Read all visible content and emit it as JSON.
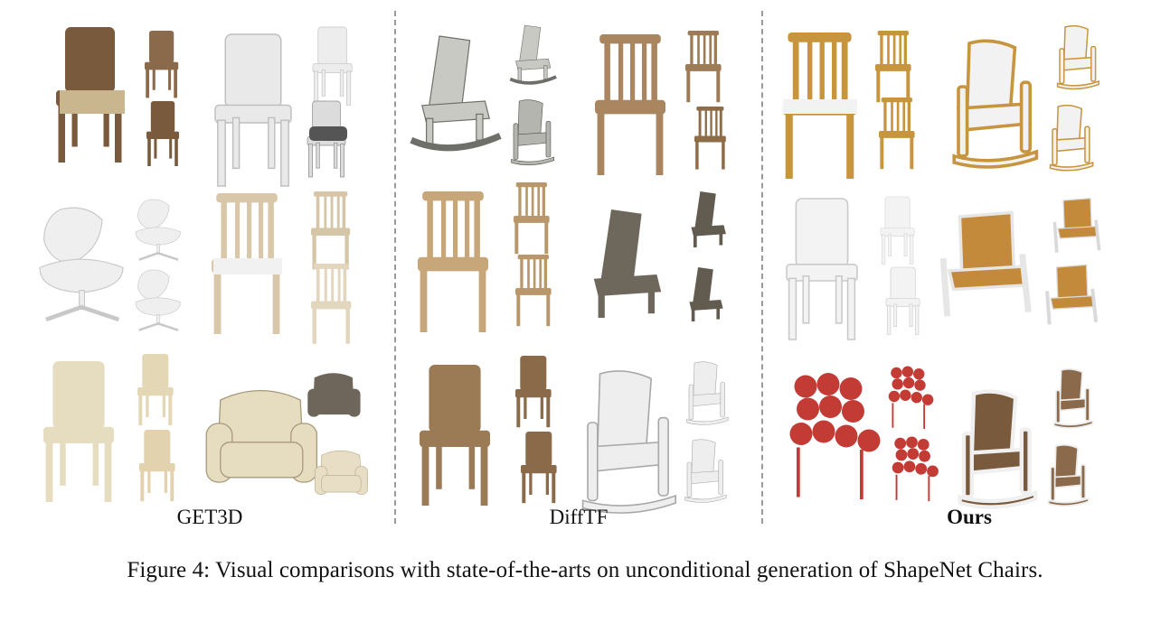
{
  "figure": {
    "columns": [
      {
        "label": "GET3D",
        "bold": false
      },
      {
        "label": "DiffTF",
        "bold": false
      },
      {
        "label": "Ours",
        "bold": true
      }
    ],
    "caption": "Figure 4: Visual comparisons with state-of-the-arts on unconditional generation of ShapeNet Chairs."
  },
  "colors": {
    "wood_dark": "#7a5a3c",
    "wood_mid": "#b08a5e",
    "wood_light": "#d9b887",
    "white": "#f0f0f0",
    "grey": "#9a9a9a",
    "dark_grey": "#5d574e",
    "cream": "#e6dcc0",
    "red": "#c23b35",
    "oak": "#c8953f",
    "silver": "#e5e5e5"
  }
}
